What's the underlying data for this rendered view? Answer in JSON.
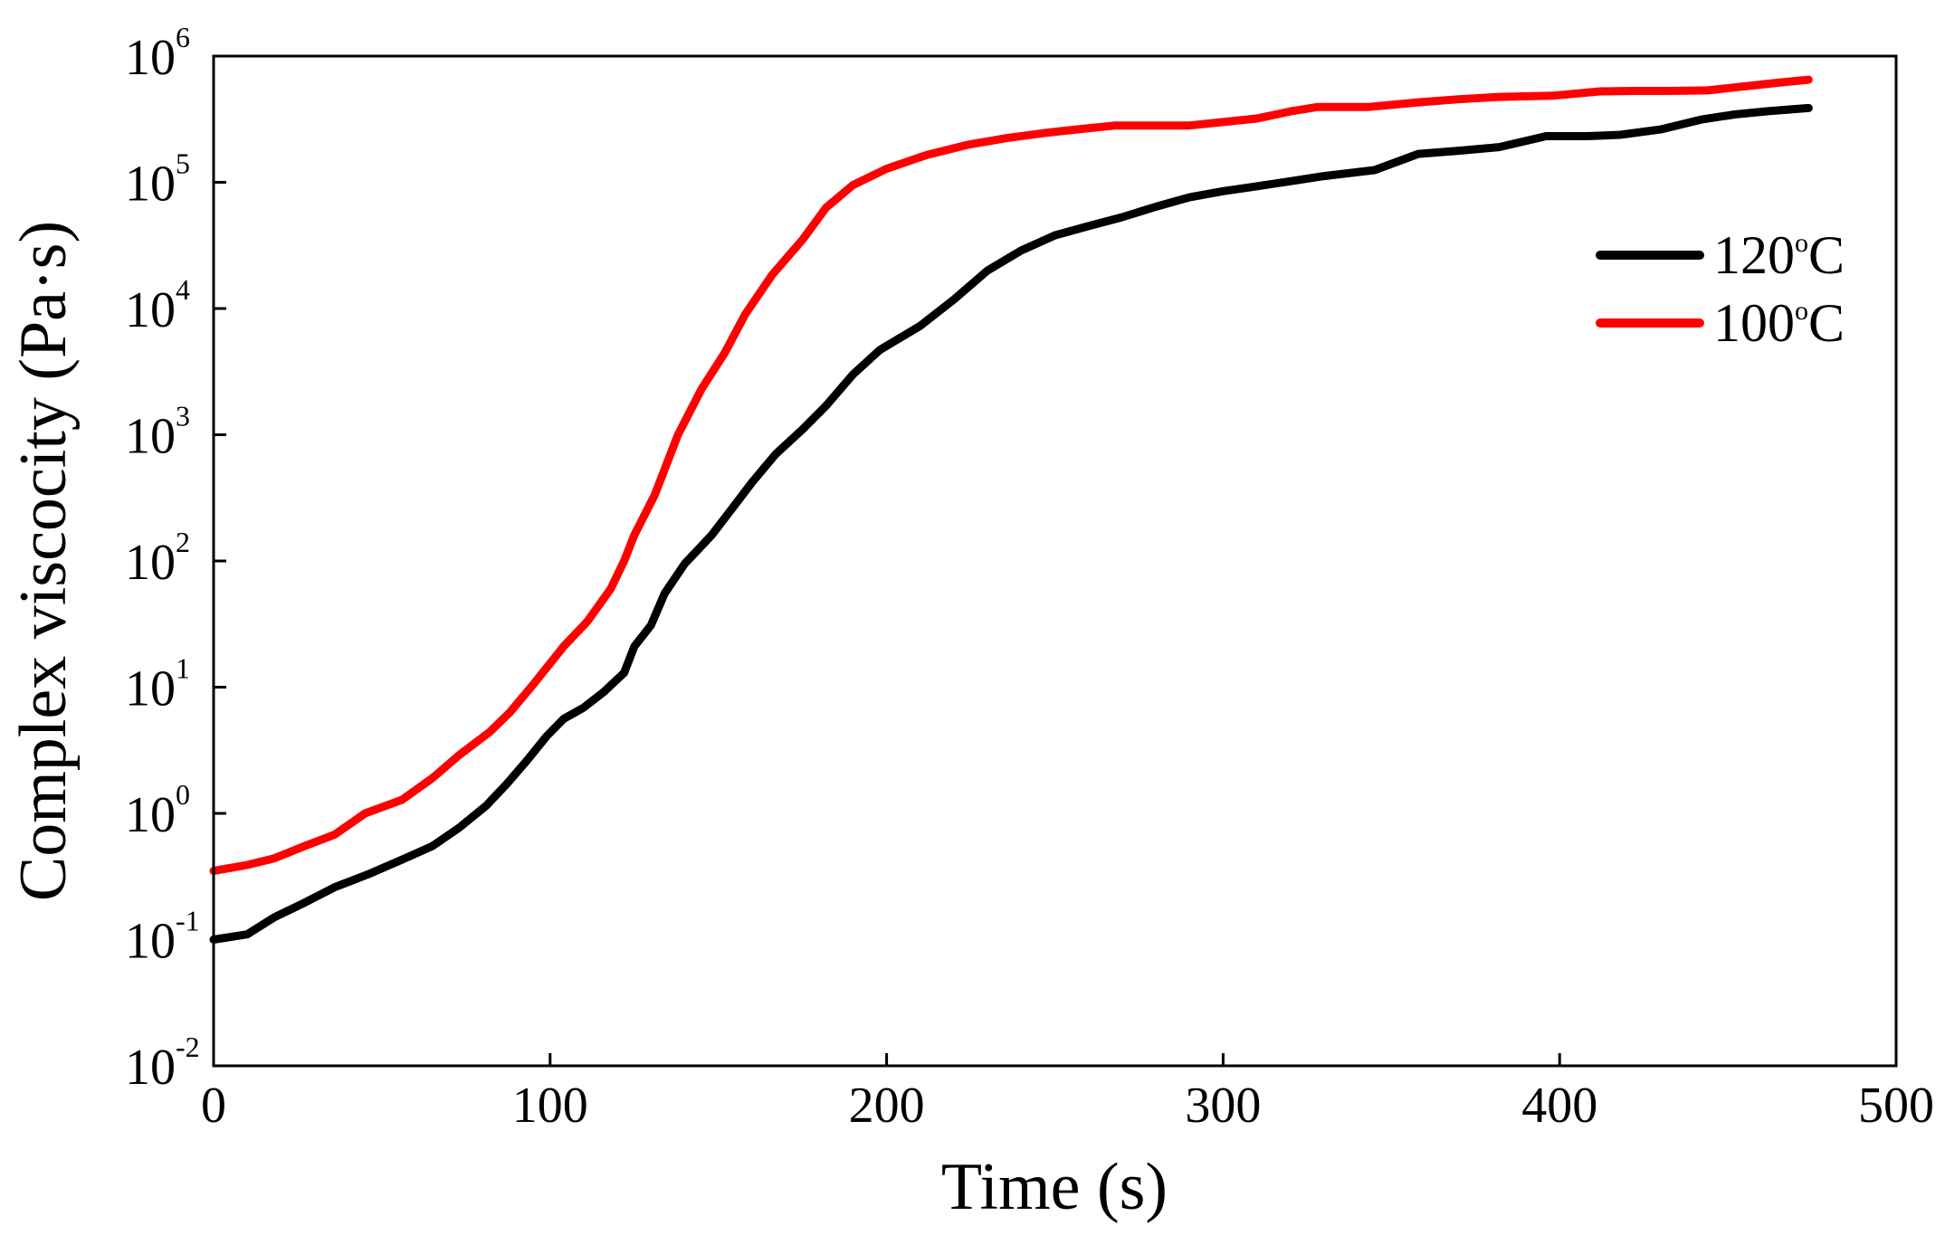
{
  "chart_data": {
    "type": "line",
    "title": "",
    "xlabel": "Time (s)",
    "ylabel": "Complex viscocity (Pa·s)",
    "xlim": [
      0,
      500
    ],
    "ylim_log10": [
      -2,
      6
    ],
    "yscale": "log",
    "x_ticks": [
      {
        "value": 0,
        "label": "0"
      },
      {
        "value": 100,
        "label": "100"
      },
      {
        "value": 200,
        "label": "200"
      },
      {
        "value": 300,
        "label": "300"
      },
      {
        "value": 400,
        "label": "400"
      },
      {
        "value": 500,
        "label": "500"
      }
    ],
    "y_ticks": [
      {
        "exp": -2,
        "base": "10",
        "sup": "-2"
      },
      {
        "exp": -1,
        "base": "10",
        "sup": "-1"
      },
      {
        "exp": 0,
        "base": "10",
        "sup": "0"
      },
      {
        "exp": 1,
        "base": "10",
        "sup": "1"
      },
      {
        "exp": 2,
        "base": "10",
        "sup": "2"
      },
      {
        "exp": 3,
        "base": "10",
        "sup": "3"
      },
      {
        "exp": 4,
        "base": "10",
        "sup": "4"
      },
      {
        "exp": 5,
        "base": "10",
        "sup": "5"
      },
      {
        "exp": 6,
        "base": "10",
        "sup": "6"
      }
    ],
    "legend_position": "top-right",
    "series": [
      {
        "name": "120",
        "unit_sup": "o",
        "unit": "C",
        "color": "#000000",
        "points": [
          [
            0,
            0.1
          ],
          [
            10,
            0.11
          ],
          [
            18,
            0.15
          ],
          [
            26,
            0.19
          ],
          [
            36,
            0.26
          ],
          [
            46,
            0.33
          ],
          [
            56,
            0.43
          ],
          [
            65,
            0.55
          ],
          [
            73,
            0.77
          ],
          [
            81,
            1.15
          ],
          [
            87,
            1.7
          ],
          [
            93,
            2.6
          ],
          [
            99,
            4.1
          ],
          [
            104,
            5.6
          ],
          [
            110,
            6.9
          ],
          [
            116,
            9.2
          ],
          [
            122,
            13
          ],
          [
            125,
            21
          ],
          [
            130,
            31
          ],
          [
            134,
            55
          ],
          [
            140,
            95
          ],
          [
            148,
            160
          ],
          [
            155,
            280
          ],
          [
            160,
            420
          ],
          [
            167,
            700
          ],
          [
            175,
            1100
          ],
          [
            182,
            1700
          ],
          [
            190,
            3000
          ],
          [
            198,
            4700
          ],
          [
            210,
            7300
          ],
          [
            220,
            11800
          ],
          [
            230,
            20000
          ],
          [
            240,
            28800
          ],
          [
            250,
            38000
          ],
          [
            260,
            45000
          ],
          [
            270,
            53000
          ],
          [
            280,
            64000
          ],
          [
            290,
            76000
          ],
          [
            300,
            85000
          ],
          [
            310,
            93000
          ],
          [
            320,
            102000
          ],
          [
            330,
            112000
          ],
          [
            345,
            125000
          ],
          [
            358,
            168000
          ],
          [
            370,
            178000
          ],
          [
            382,
            190000
          ],
          [
            396,
            232000
          ],
          [
            408,
            232000
          ],
          [
            418,
            238000
          ],
          [
            430,
            262000
          ],
          [
            442,
            314000
          ],
          [
            452,
            345000
          ],
          [
            462,
            366000
          ],
          [
            474,
            388000
          ]
        ]
      },
      {
        "name": "100",
        "unit_sup": "o",
        "unit": "C",
        "color": "#ff0000",
        "points": [
          [
            0,
            0.35
          ],
          [
            10,
            0.39
          ],
          [
            18,
            0.44
          ],
          [
            27,
            0.55
          ],
          [
            36,
            0.68
          ],
          [
            45,
            1.0
          ],
          [
            56,
            1.28
          ],
          [
            65,
            1.9
          ],
          [
            73,
            2.9
          ],
          [
            82,
            4.4
          ],
          [
            88,
            6.3
          ],
          [
            95,
            10.5
          ],
          [
            104,
            21
          ],
          [
            111,
            33
          ],
          [
            118,
            60
          ],
          [
            122,
            100
          ],
          [
            125,
            160
          ],
          [
            131,
            330
          ],
          [
            138,
            1000
          ],
          [
            145,
            2300
          ],
          [
            152,
            4500
          ],
          [
            158,
            9000
          ],
          [
            166,
            18500
          ],
          [
            175,
            35000
          ],
          [
            182,
            63000
          ],
          [
            190,
            95000
          ],
          [
            200,
            128000
          ],
          [
            212,
            165000
          ],
          [
            224,
            198000
          ],
          [
            236,
            225000
          ],
          [
            248,
            248000
          ],
          [
            258,
            265000
          ],
          [
            268,
            282000
          ],
          [
            278,
            282000
          ],
          [
            290,
            282000
          ],
          [
            300,
            300000
          ],
          [
            310,
            320000
          ],
          [
            320,
            365000
          ],
          [
            328,
            395000
          ],
          [
            343,
            395000
          ],
          [
            358,
            430000
          ],
          [
            370,
            455000
          ],
          [
            382,
            475000
          ],
          [
            398,
            485000
          ],
          [
            412,
            525000
          ],
          [
            422,
            530000
          ],
          [
            432,
            530000
          ],
          [
            444,
            535000
          ],
          [
            456,
            580000
          ],
          [
            466,
            620000
          ],
          [
            474,
            650000
          ]
        ]
      }
    ]
  }
}
